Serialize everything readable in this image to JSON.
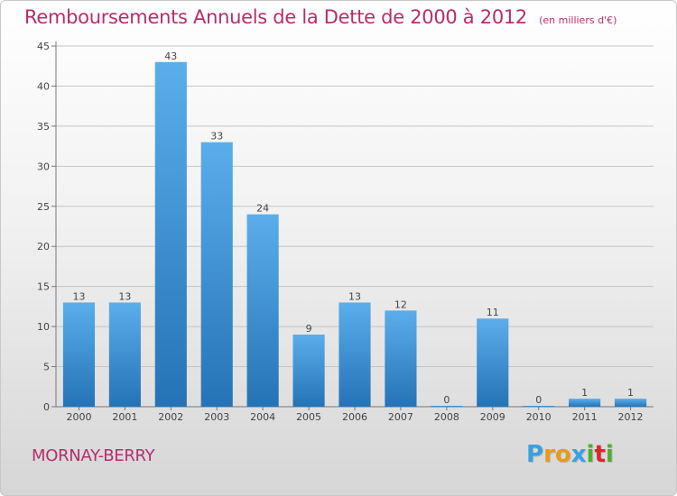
{
  "title": "Remboursements Annuels de la Dette de 2000 à 2012",
  "subtitle": "(en milliers d'€)",
  "city": "MORNAY-BERRY",
  "logo": {
    "letters": [
      "P",
      "r",
      "o",
      "x",
      "i",
      "t",
      "i"
    ],
    "colors": [
      "#3aa0e0",
      "#e89a1e",
      "#e89a1e",
      "#3aa0e0",
      "#4caf30",
      "#d8282a",
      "#4caf30"
    ]
  },
  "colors": {
    "title": "#b52e6c",
    "bar_light": "#5aaeea",
    "bar_dark": "#2573b6",
    "grid": "#c4c4c4",
    "axis": "#444444"
  },
  "chart_data": {
    "type": "bar",
    "categories": [
      "2000",
      "2001",
      "2002",
      "2003",
      "2004",
      "2005",
      "2006",
      "2007",
      "2008",
      "2009",
      "2010",
      "2011",
      "2012"
    ],
    "values": [
      13,
      13,
      43,
      33,
      24,
      9,
      13,
      12,
      0,
      11,
      0,
      1,
      1
    ],
    "ylim": [
      0,
      45
    ],
    "yticks": [
      0,
      5,
      10,
      15,
      20,
      25,
      30,
      35,
      40,
      45
    ],
    "grid": true,
    "legend": "none"
  }
}
